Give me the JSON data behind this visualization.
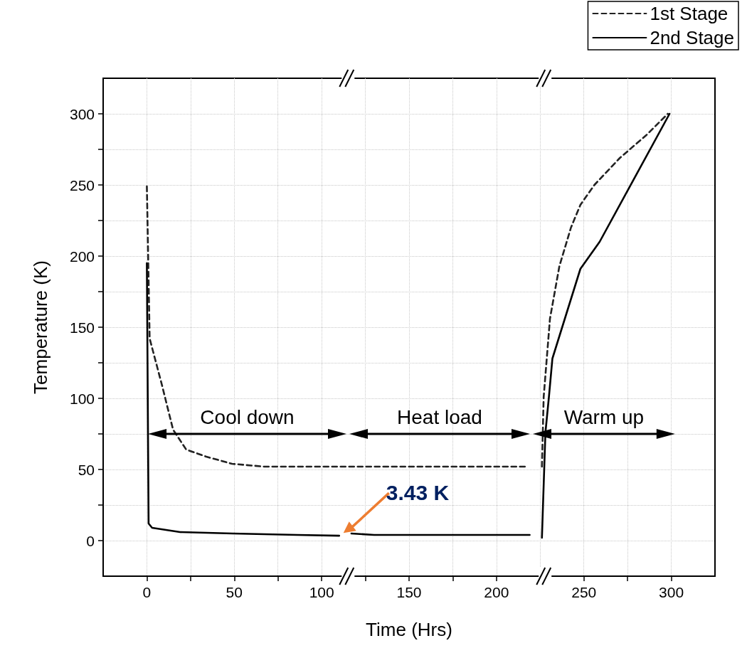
{
  "chart_data": {
    "type": "line",
    "xlabel": "Time (Hrs)",
    "ylabel": "Temperature (K)",
    "xlim": [
      -25,
      325
    ],
    "ylim": [
      -25,
      325
    ],
    "xticks": [
      0,
      {
        "value": 25,
        "label": null
      },
      50,
      {
        "value": 75,
        "label": null
      },
      100,
      {
        "value": 125,
        "label": null
      },
      150,
      {
        "value": 175,
        "label": null
      },
      200,
      {
        "value": 225,
        "label": null
      },
      250,
      {
        "value": 275,
        "label": null
      },
      300
    ],
    "yticks": [
      0,
      {
        "value": 25,
        "label": null
      },
      50,
      {
        "value": 75,
        "label": null
      },
      100,
      {
        "value": 125,
        "label": null
      },
      150,
      {
        "value": 175,
        "label": null
      },
      200,
      {
        "value": 225,
        "label": null
      },
      250,
      {
        "value": 275,
        "label": null
      },
      300
    ],
    "grid": true,
    "legend": "top right",
    "marker": "none",
    "series": [
      {
        "name": "1st Stage",
        "color": "#222222",
        "line_style": "dashed",
        "x": [
          0,
          1.6,
          8.5,
          15,
          22.5,
          34,
          48.7,
          67,
          105,
          150,
          218,
          222,
          226,
          227,
          230.6,
          236,
          242.6,
          248,
          256,
          270.6,
          285.7,
          298
        ],
        "values": [
          249,
          142,
          110,
          78,
          64,
          59,
          54,
          52,
          52,
          52,
          52,
          null,
          52,
          101,
          156,
          193,
          220,
          236,
          250,
          269,
          285,
          300
        ]
      },
      {
        "name": "2nd Stage",
        "color": "#000000",
        "line_style": "solid",
        "x": [
          0,
          1,
          3,
          19,
          49,
          86,
          110,
          114,
          117,
          130,
          150,
          170,
          190,
          210,
          219,
          222,
          226,
          228,
          230,
          232,
          248,
          259,
          299
        ],
        "values": [
          195,
          12,
          9,
          6,
          5,
          4,
          3.43,
          null,
          5,
          4,
          4,
          4,
          4,
          4,
          4,
          null,
          2,
          76,
          101,
          128,
          191,
          210,
          300
        ]
      }
    ],
    "annotations": [
      "Cool down",
      "Heat load",
      "Warm up",
      {
        "text": "3.43 K",
        "x": 110,
        "y": 3.43
      }
    ]
  }
}
